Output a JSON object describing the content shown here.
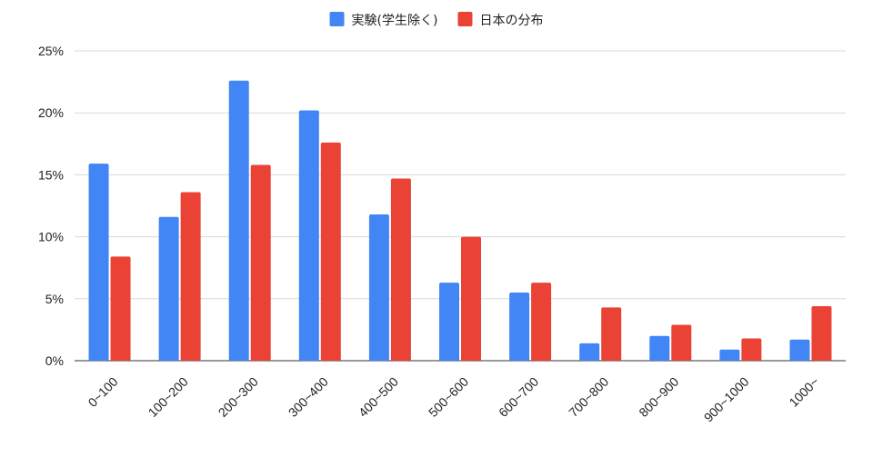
{
  "chart_data": {
    "type": "bar",
    "title": "",
    "xlabel": "",
    "ylabel": "",
    "categories": [
      "0~100",
      "100~200",
      "200~300",
      "300~400",
      "400~500",
      "500~600",
      "600~700",
      "700~800",
      "800~900",
      "900~1000",
      "1000~"
    ],
    "series": [
      {
        "name": "実験(学生除く)",
        "color": "#4285f4",
        "values": [
          15.9,
          11.6,
          22.6,
          20.2,
          11.8,
          6.3,
          5.5,
          1.4,
          2.0,
          0.9,
          1.7
        ]
      },
      {
        "name": "日本の分布",
        "color": "#ea4335",
        "values": [
          8.4,
          13.6,
          15.8,
          17.6,
          14.7,
          10.0,
          6.3,
          4.3,
          2.9,
          1.8,
          4.4
        ]
      }
    ],
    "ylim": [
      0,
      25
    ],
    "yticks": [
      0,
      5,
      10,
      15,
      20,
      25
    ],
    "ytick_labels": [
      "0%",
      "5%",
      "10%",
      "15%",
      "20%",
      "25%"
    ],
    "grid": true,
    "legend_position": "top-center"
  }
}
